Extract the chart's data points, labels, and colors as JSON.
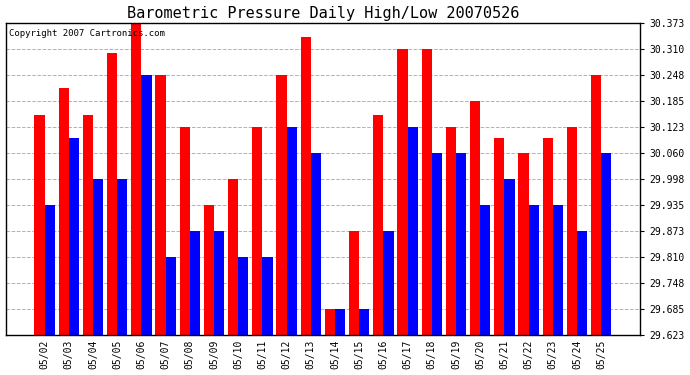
{
  "title": "Barometric Pressure Daily High/Low 20070526",
  "copyright_text": "Copyright 2007 Cartronics.com",
  "categories": [
    "05/02",
    "05/03",
    "05/04",
    "05/05",
    "05/06",
    "05/07",
    "05/08",
    "05/09",
    "05/10",
    "05/11",
    "05/12",
    "05/13",
    "05/14",
    "05/15",
    "05/16",
    "05/17",
    "05/18",
    "05/19",
    "05/20",
    "05/21",
    "05/22",
    "05/23",
    "05/24",
    "05/25"
  ],
  "highs": [
    30.152,
    30.218,
    30.152,
    30.3,
    30.373,
    30.248,
    30.123,
    29.935,
    29.998,
    30.123,
    30.248,
    30.34,
    29.685,
    29.873,
    30.152,
    30.31,
    30.31,
    30.123,
    30.185,
    30.098,
    30.06,
    30.098,
    30.123,
    30.248
  ],
  "lows": [
    29.935,
    30.098,
    29.998,
    29.998,
    30.248,
    29.81,
    29.873,
    29.873,
    29.81,
    29.81,
    30.123,
    30.06,
    29.685,
    29.685,
    29.873,
    30.123,
    30.06,
    30.06,
    29.935,
    29.998,
    29.935,
    29.935,
    29.873,
    30.06
  ],
  "high_color": "#ff0000",
  "low_color": "#0000ff",
  "bg_color": "#ffffff",
  "plot_bg_color": "#ffffff",
  "grid_color": "#aaaaaa",
  "ylim_min": 29.623,
  "ylim_max": 30.373,
  "yticks": [
    29.623,
    29.685,
    29.748,
    29.81,
    29.873,
    29.935,
    29.998,
    30.06,
    30.123,
    30.185,
    30.248,
    30.31,
    30.373
  ],
  "title_fontsize": 11,
  "tick_fontsize": 7,
  "copyright_fontsize": 6.5
}
